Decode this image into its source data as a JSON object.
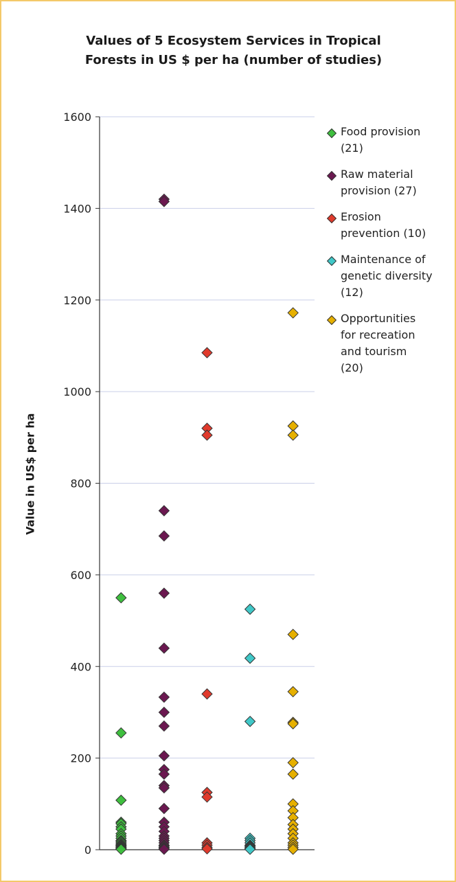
{
  "chart_data": {
    "type": "scatter",
    "title": "Values of 5 Ecosystem Services in Tropical\nForests in US $ per ha (number of studies)",
    "ylabel": "Value in US$ per ha",
    "xlabel": "",
    "ylim": [
      0,
      1600
    ],
    "yticks": [
      "0",
      "200",
      "400",
      "600",
      "800",
      "1000",
      "1200",
      "1400",
      "1600"
    ],
    "grid": true,
    "legend_position": "right",
    "series": [
      {
        "name": "Food provision\n(21)",
        "color": "#3fbf3f",
        "values": [
          550,
          255,
          108,
          60,
          57,
          50,
          45,
          35,
          30,
          25,
          20,
          18,
          15,
          12,
          10,
          8,
          6,
          5,
          3,
          2,
          1
        ]
      },
      {
        "name": "Raw material\nprovision (27)",
        "color": "#6b1850",
        "values": [
          1420,
          1415,
          740,
          685,
          560,
          440,
          333,
          300,
          270,
          205,
          175,
          165,
          140,
          135,
          90,
          60,
          50,
          40,
          30,
          25,
          20,
          15,
          10,
          8,
          5,
          3,
          1
        ]
      },
      {
        "name": "Erosion\nprevention (10)",
        "color": "#e03a2c",
        "values": [
          1085,
          920,
          905,
          340,
          125,
          115,
          15,
          10,
          5,
          2
        ]
      },
      {
        "name": "Maintenance of\ngenetic diversity\n(12)",
        "color": "#40c8c8",
        "values": [
          525,
          418,
          280,
          25,
          20,
          15,
          10,
          8,
          6,
          4,
          2,
          1
        ]
      },
      {
        "name": "Opportunities\nfor recreation\nand tourism\n(20)",
        "color": "#e6b000",
        "values": [
          1172,
          925,
          905,
          470,
          345,
          278,
          275,
          190,
          165,
          100,
          85,
          70,
          55,
          45,
          35,
          25,
          15,
          10,
          5,
          1
        ]
      }
    ]
  }
}
